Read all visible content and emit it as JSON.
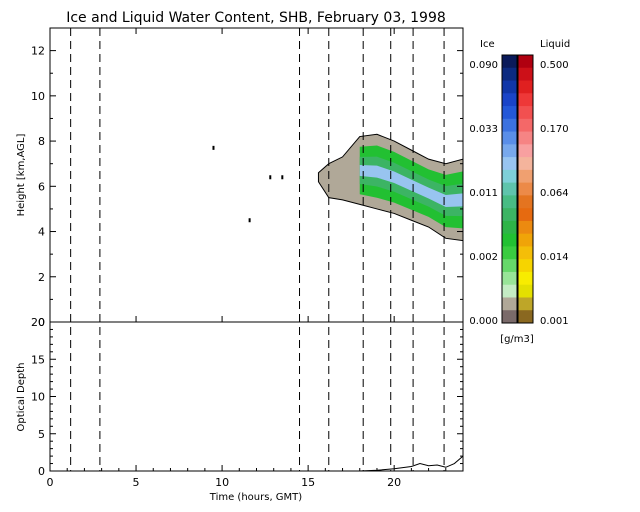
{
  "chart_data": [
    {
      "type": "heatmap",
      "title": "Ice and Liquid Water Content, SHB, February 03, 1998",
      "xlabel": "",
      "ylabel": "Height [km,AGL]",
      "xlim": [
        0,
        24
      ],
      "ylim": [
        0,
        13
      ],
      "yticks": [
        0,
        2,
        4,
        6,
        8,
        10,
        12
      ],
      "grid": false,
      "vertical_markers": [
        1.2,
        2.9,
        14.5,
        16.2,
        18.2,
        19.8,
        21.1,
        22.9
      ],
      "cloud_region": {
        "x": [
          15.6,
          16.2,
          17.0,
          18.0,
          19.0,
          20.0,
          21.0,
          22.0,
          23.0,
          24.0
        ],
        "top": [
          6.6,
          7.0,
          7.3,
          8.2,
          8.3,
          8.0,
          7.6,
          7.2,
          7.0,
          7.2
        ],
        "base": [
          6.2,
          5.5,
          5.4,
          5.2,
          5.0,
          4.8,
          4.5,
          4.2,
          3.7,
          3.6
        ]
      },
      "isolated_points": [
        {
          "x": 9.5,
          "y": 7.7
        },
        {
          "x": 12.8,
          "y": 6.4
        },
        {
          "x": 13.5,
          "y": 6.4
        },
        {
          "x": 11.6,
          "y": 4.5
        }
      ]
    },
    {
      "type": "line",
      "xlabel": "Time (hours, GMT)",
      "ylabel": "Optical Depth",
      "xlim": [
        0,
        24
      ],
      "ylim": [
        0,
        20
      ],
      "xticks": [
        0,
        5,
        10,
        15,
        20
      ],
      "yticks": [
        0,
        5,
        10,
        15,
        20
      ],
      "x": [
        18.0,
        19.0,
        20.0,
        21.0,
        21.5,
        22.0,
        22.5,
        23.0,
        23.5,
        24.0
      ],
      "values": [
        0.0,
        0.1,
        0.3,
        0.6,
        1.0,
        0.7,
        0.8,
        0.5,
        1.0,
        2.0
      ]
    }
  ],
  "colorbar": {
    "ice_label": "Ice",
    "liquid_label": "Liquid",
    "unit": "[g/m3]",
    "ice_ticks": [
      "0.090",
      "0.033",
      "0.011",
      "0.002",
      "0.000"
    ],
    "liquid_ticks": [
      "0.500",
      "0.170",
      "0.064",
      "0.014",
      "0.001"
    ],
    "ice_colors": [
      "#0a1a5a",
      "#0c2a80",
      "#1036a8",
      "#1a44c8",
      "#2458d8",
      "#3c72e0",
      "#5a8ee8",
      "#78a8ec",
      "#98c4f0",
      "#7ed0d8",
      "#5fc4ac",
      "#48bc84",
      "#3cb464",
      "#2eb448",
      "#22c032",
      "#3acc40",
      "#66d86a",
      "#98e498",
      "#c4ecc4",
      "#b0a898",
      "#7a6a6a"
    ],
    "liquid_colors": [
      "#b00010",
      "#cc1018",
      "#e02020",
      "#ee3838",
      "#f25050",
      "#f46868",
      "#f68484",
      "#f8a0a0",
      "#f4b49c",
      "#f0a070",
      "#ec8a48",
      "#e47420",
      "#e66a10",
      "#ec8a10",
      "#f0a408",
      "#f4be08",
      "#f6d400",
      "#f8ec00",
      "#e4e000",
      "#bea628",
      "#8a6820"
    ]
  }
}
